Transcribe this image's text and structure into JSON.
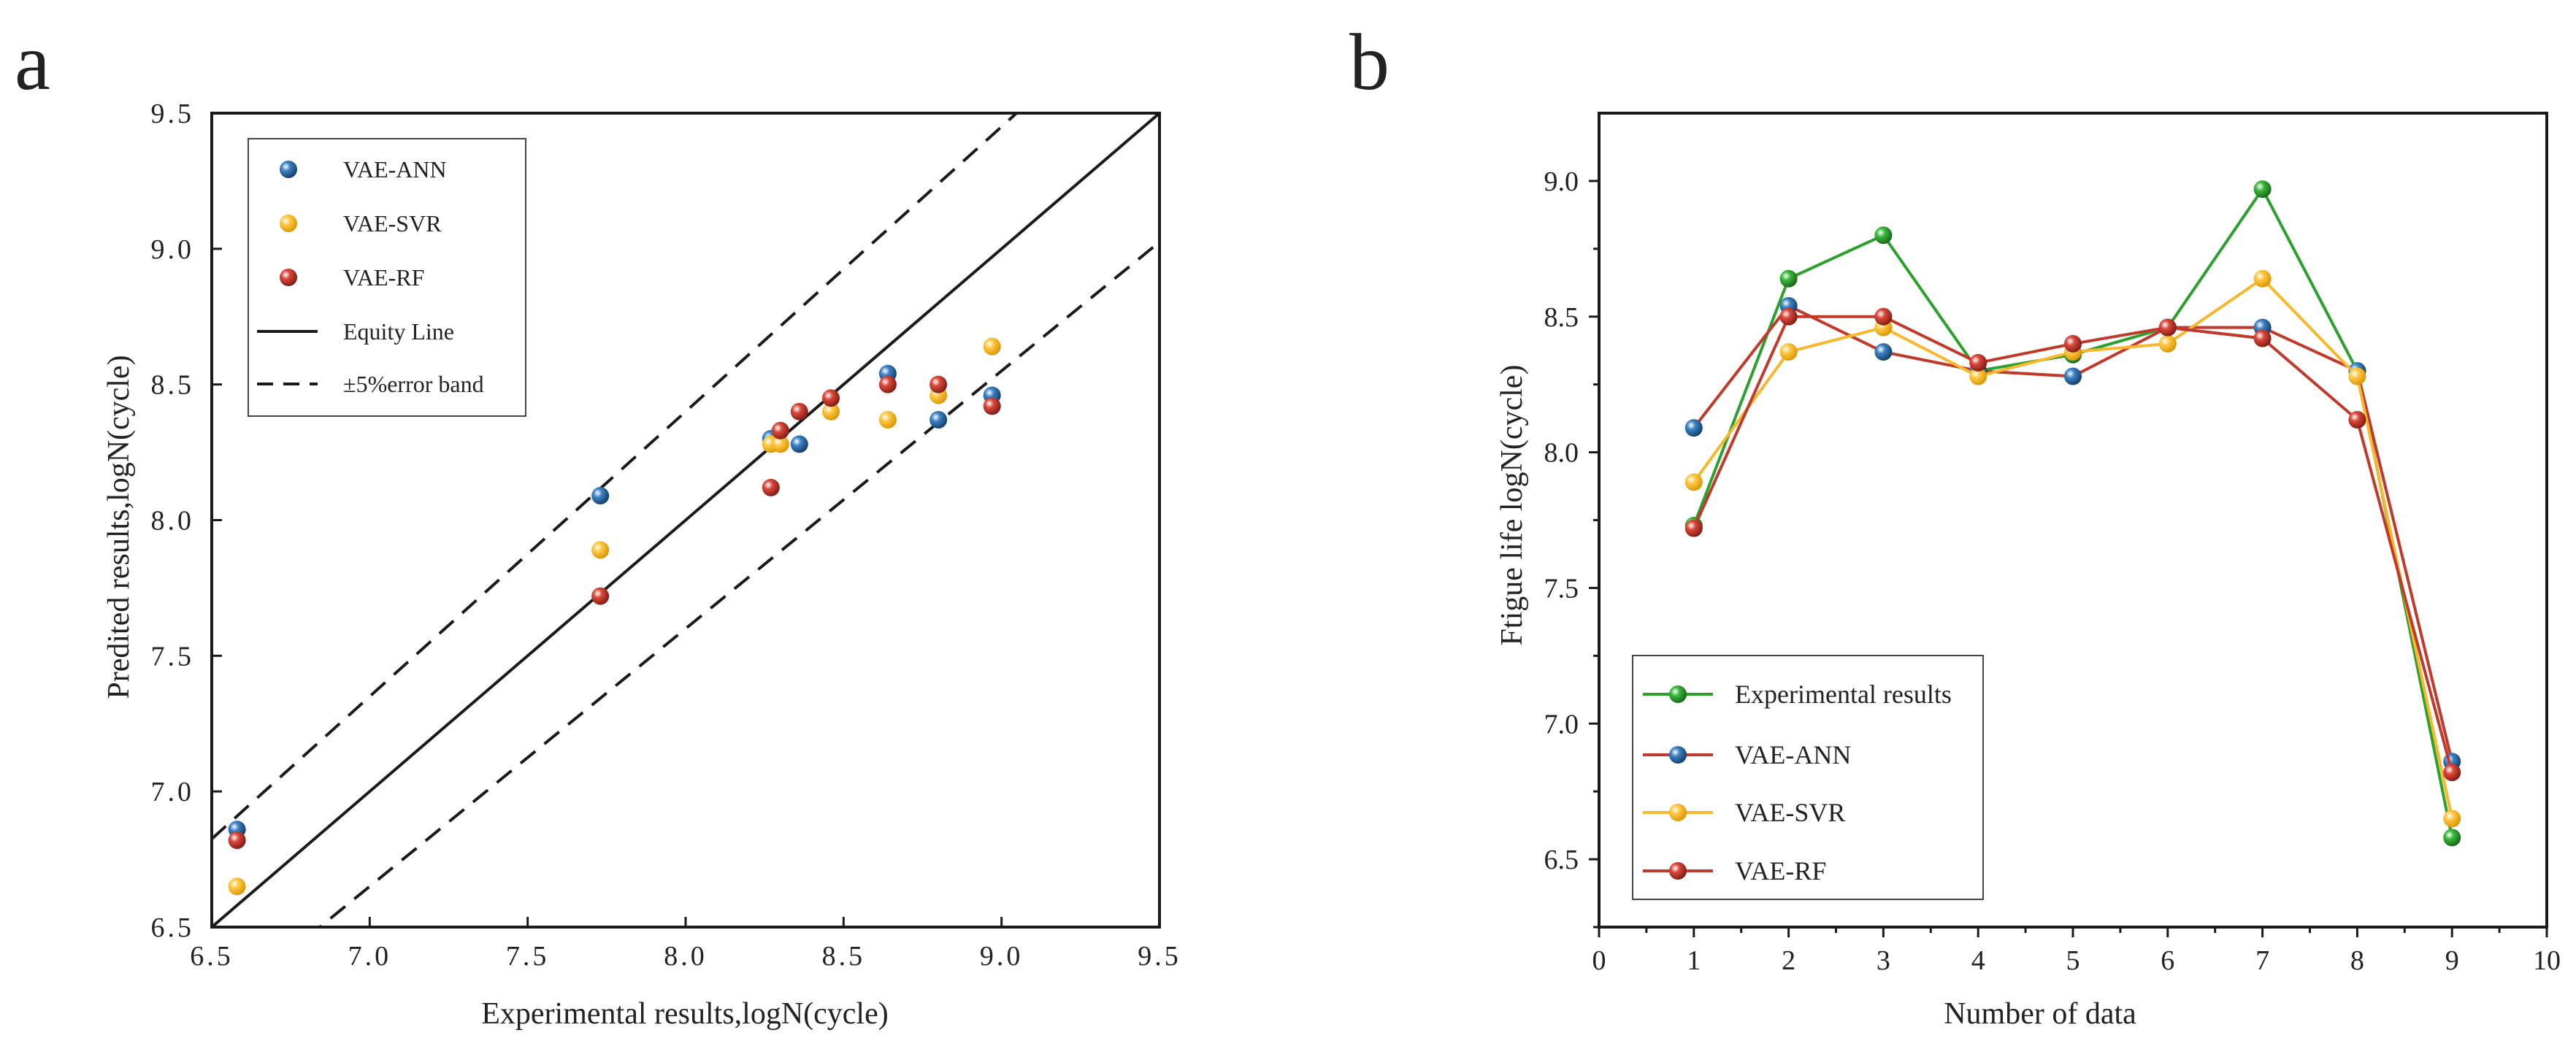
{
  "colors": {
    "ann": "#1f5f99",
    "svr": "#f9b82b",
    "rf": "#c0392b",
    "exp": "#2ca02c",
    "axis": "#1a1a1a"
  },
  "chart_data": [
    {
      "panel": "a",
      "type": "scatter",
      "xlabel": "Experimental results,logN(cycle)",
      "ylabel": "Predited results,logN(cycle)",
      "xlim": [
        6.5,
        9.5
      ],
      "ylim": [
        6.5,
        9.5
      ],
      "xticks": [
        "6.5",
        "7.0",
        "7.5",
        "8.0",
        "8.5",
        "9.0",
        "9.5"
      ],
      "yticks": [
        "6.5",
        "7.0",
        "7.5",
        "8.0",
        "8.5",
        "9.0",
        "9.5"
      ],
      "legend_position": "top-left",
      "series": [
        {
          "name": "VAE-ANN",
          "color_key": "ann",
          "points": [
            [
              6.58,
              6.86
            ],
            [
              7.73,
              8.09
            ],
            [
              8.27,
              8.3
            ],
            [
              8.36,
              8.28
            ],
            [
              8.64,
              8.54
            ],
            [
              8.8,
              8.37
            ],
            [
              8.97,
              8.46
            ]
          ]
        },
        {
          "name": "VAE-SVR",
          "color_key": "svr",
          "points": [
            [
              6.58,
              6.65
            ],
            [
              7.73,
              7.89
            ],
            [
              8.27,
              8.28
            ],
            [
              8.3,
              8.28
            ],
            [
              8.46,
              8.4
            ],
            [
              8.64,
              8.37
            ],
            [
              8.8,
              8.46
            ],
            [
              8.97,
              8.64
            ]
          ]
        },
        {
          "name": "VAE-RF",
          "color_key": "rf",
          "points": [
            [
              6.58,
              6.82
            ],
            [
              7.73,
              7.72
            ],
            [
              8.27,
              8.12
            ],
            [
              8.3,
              8.33
            ],
            [
              8.36,
              8.4
            ],
            [
              8.46,
              8.45
            ],
            [
              8.64,
              8.5
            ],
            [
              8.8,
              8.5
            ],
            [
              8.97,
              8.42
            ]
          ]
        }
      ],
      "lines": [
        {
          "name": "Equity Line",
          "style": "solid",
          "slope": 1.0,
          "intercept": 0.0
        },
        {
          "name": "±5%error band",
          "style": "dashed",
          "slope": 1.05,
          "intercept": 0.0
        },
        {
          "name": "±5%error band",
          "style": "dashed",
          "slope": 0.95,
          "intercept": 0.0
        }
      ],
      "legend": [
        "VAE-ANN",
        "VAE-SVR",
        "VAE-RF",
        "Equity Line",
        "±5%error band"
      ]
    },
    {
      "panel": "b",
      "type": "line",
      "xlabel": "Number of data",
      "ylabel": "Ftigue life logN(cycle)",
      "xlim": [
        0,
        10
      ],
      "ylim": [
        6.25,
        9.25
      ],
      "xticks": [
        "0",
        "1",
        "2",
        "3",
        "4",
        "5",
        "6",
        "7",
        "8",
        "9",
        "10"
      ],
      "yticks": [
        "6.5",
        "7.0",
        "7.5",
        "8.0",
        "8.5",
        "9.0"
      ],
      "ytick_values": [
        6.5,
        7.0,
        7.5,
        8.0,
        8.5,
        9.0
      ],
      "x": [
        1,
        2,
        3,
        4,
        5,
        6,
        7,
        8,
        9
      ],
      "legend_position": "bottom-left",
      "series": [
        {
          "name": "Experimental results",
          "line_color_key": "exp",
          "marker_color_key": "exp",
          "values": [
            7.73,
            8.64,
            8.8,
            8.3,
            8.36,
            8.46,
            8.97,
            8.3,
            6.58
          ]
        },
        {
          "name": "VAE-ANN",
          "line_color_key": "rf",
          "marker_color_key": "ann",
          "values": [
            8.09,
            8.54,
            8.37,
            8.3,
            8.28,
            8.46,
            8.46,
            8.3,
            6.86
          ]
        },
        {
          "name": "VAE-SVR",
          "line_color_key": "svr",
          "marker_color_key": "svr",
          "values": [
            7.89,
            8.37,
            8.46,
            8.28,
            8.37,
            8.4,
            8.64,
            8.28,
            6.65
          ]
        },
        {
          "name": "VAE-RF",
          "line_color_key": "rf",
          "marker_color_key": "rf",
          "values": [
            7.72,
            8.5,
            8.5,
            8.33,
            8.4,
            8.46,
            8.42,
            8.12,
            6.82
          ]
        }
      ]
    }
  ]
}
